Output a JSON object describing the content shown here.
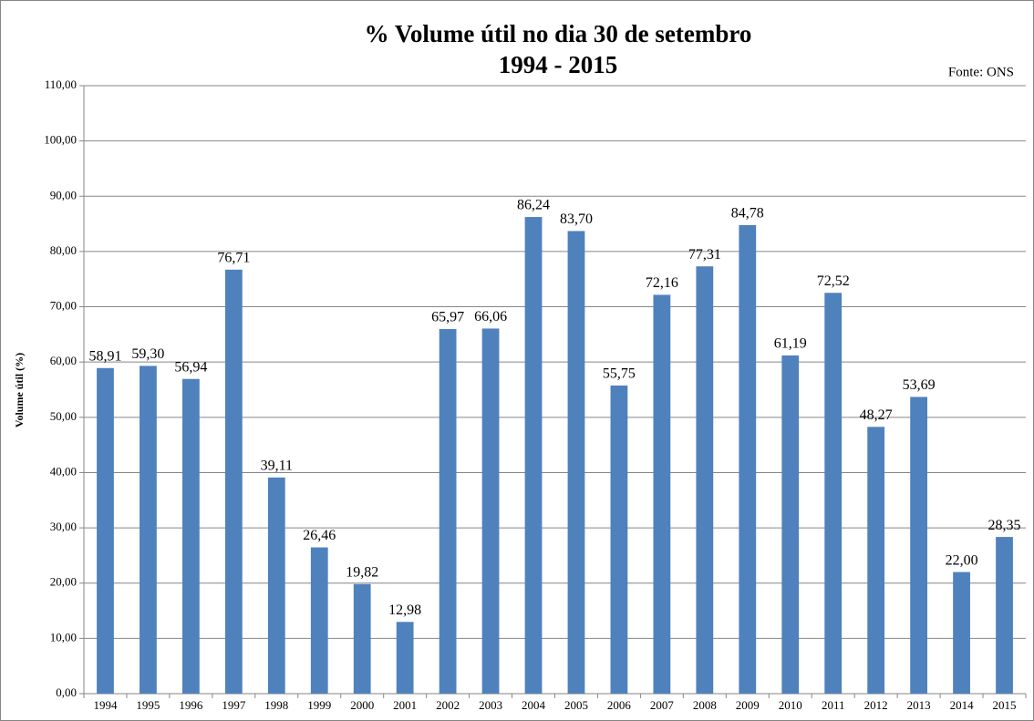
{
  "chart_data": {
    "type": "bar",
    "title": "% Volume útil no dia 30 de setembro",
    "subtitle": "1994 - 2015",
    "source": "Fonte: ONS",
    "y_label": "Volume útil (%)",
    "categories": [
      "1994",
      "1995",
      "1996",
      "1997",
      "1998",
      "1999",
      "2000",
      "2001",
      "2002",
      "2003",
      "2004",
      "2005",
      "2006",
      "2007",
      "2008",
      "2009",
      "2010",
      "2011",
      "2012",
      "2013",
      "2014",
      "2015"
    ],
    "values": [
      58.91,
      59.3,
      56.94,
      76.71,
      39.11,
      26.46,
      19.82,
      12.98,
      65.97,
      66.06,
      86.24,
      83.7,
      55.75,
      72.16,
      77.31,
      84.78,
      61.19,
      72.52,
      48.27,
      53.69,
      22.0,
      28.35
    ],
    "value_labels": [
      "58,91",
      "59,30",
      "56,94",
      "76,71",
      "39,11",
      "26,46",
      "19,82",
      "12,98",
      "65,97",
      "66,06",
      "86,24",
      "83,70",
      "55,75",
      "72,16",
      "77,31",
      "84,78",
      "61,19",
      "72,52",
      "48,27",
      "53,69",
      "22,00",
      "28,35"
    ],
    "color": "#4f81bd",
    "ylim": [
      0,
      110
    ],
    "yticks": [
      {
        "value": 0,
        "label": "0,00"
      },
      {
        "value": 10,
        "label": "10,00"
      },
      {
        "value": 20,
        "label": "20,00"
      },
      {
        "value": 30,
        "label": "30,00"
      },
      {
        "value": 40,
        "label": "40,00"
      },
      {
        "value": 50,
        "label": "50,00"
      },
      {
        "value": 60,
        "label": "60,00"
      },
      {
        "value": 70,
        "label": "70,00"
      },
      {
        "value": 80,
        "label": "80,00"
      },
      {
        "value": 90,
        "label": "90,00"
      },
      {
        "value": 100,
        "label": "100,00"
      },
      {
        "value": 110,
        "label": "110,00"
      }
    ],
    "grid": true
  }
}
